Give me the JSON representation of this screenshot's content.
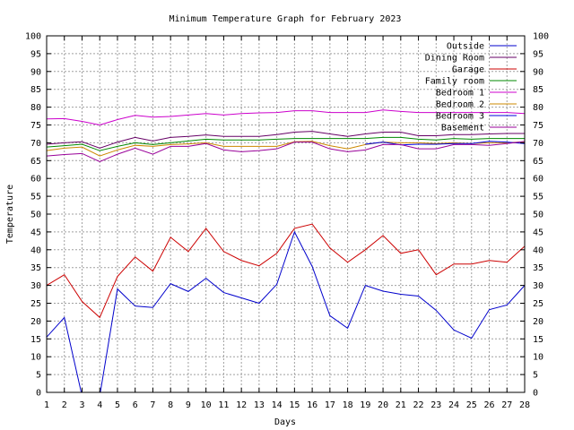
{
  "chart_data": {
    "type": "line",
    "title": "Minimum Temperature Graph for February 2023",
    "xlabel": "Days",
    "ylabel": "Temperature",
    "xlim": [
      1,
      28
    ],
    "ylim": [
      0,
      100
    ],
    "x_ticks": [
      1,
      2,
      3,
      4,
      5,
      6,
      7,
      8,
      9,
      10,
      11,
      12,
      13,
      14,
      15,
      16,
      17,
      18,
      19,
      20,
      21,
      22,
      23,
      24,
      25,
      26,
      27,
      28
    ],
    "y_ticks": [
      0,
      5,
      10,
      15,
      20,
      25,
      30,
      35,
      40,
      45,
      50,
      55,
      60,
      65,
      70,
      75,
      80,
      85,
      90,
      95,
      100
    ],
    "grid": true,
    "legend_position": "top-right",
    "x": [
      1,
      2,
      3,
      4,
      5,
      6,
      7,
      8,
      9,
      10,
      11,
      12,
      13,
      14,
      15,
      16,
      17,
      18,
      19,
      20,
      21,
      22,
      23,
      24,
      25,
      26,
      27,
      28
    ],
    "series": [
      {
        "name": "Outside",
        "color": "#0000cc",
        "values": [
          15.5,
          21,
          -1,
          -1,
          29,
          24.2,
          23.8,
          30.5,
          28.3,
          32,
          28,
          26.5,
          25,
          30.3,
          45,
          35.3,
          21.5,
          18,
          30,
          28.4,
          27.5,
          27,
          23,
          17.5,
          15.2,
          23.2,
          24.5,
          30
        ]
      },
      {
        "name": "Dining Room",
        "color": "#660066",
        "values": [
          69.6,
          70,
          70.3,
          68.5,
          70.2,
          71.5,
          70.5,
          71.5,
          71.8,
          72.2,
          71.8,
          71.8,
          71.8,
          72.3,
          73,
          73.2,
          72.5,
          71.8,
          72.5,
          73,
          73,
          72,
          72,
          72.3,
          72.3,
          72.5,
          72.6,
          72.6
        ]
      },
      {
        "name": "Garage",
        "color": "#cc0000",
        "values": [
          30,
          33,
          25.5,
          21,
          32.5,
          38,
          34,
          43.5,
          39.5,
          46,
          39.5,
          37,
          35.5,
          39,
          46,
          47.2,
          40.5,
          36.5,
          40,
          44,
          39,
          40,
          33,
          36,
          36,
          37,
          36.5,
          41
        ]
      },
      {
        "name": "Family room",
        "color": "#008800",
        "values": [
          68.8,
          69.2,
          69.6,
          67.8,
          69,
          70,
          69.5,
          70,
          70.5,
          71,
          70.8,
          70.8,
          70.8,
          71,
          71.2,
          71.2,
          71.2,
          71.2,
          71.2,
          71.5,
          71.5,
          71,
          70.8,
          71.2,
          71,
          71.2,
          71.2,
          71.2
        ]
      },
      {
        "name": "Bedroom 1",
        "color": "#cc00cc",
        "values": [
          76.7,
          76.8,
          76,
          75,
          76.5,
          77.7,
          77.2,
          77.4,
          77.8,
          78.2,
          77.8,
          78.2,
          78.4,
          78.5,
          79,
          79,
          78.5,
          78.5,
          78.5,
          79.2,
          78.8,
          78.5,
          78.5,
          78.5,
          78.5,
          78.5,
          78.5,
          78.2
        ]
      },
      {
        "name": "Bedroom 2",
        "color": "#cc8800",
        "values": [
          67.8,
          68.5,
          68.8,
          66.3,
          68,
          69.3,
          69,
          69.5,
          69.7,
          70,
          69,
          69,
          69,
          69,
          70.3,
          70.4,
          69.2,
          68.3,
          69.5,
          70.2,
          70,
          70,
          69.8,
          70,
          69.8,
          70,
          70,
          70.3
        ]
      },
      {
        "name": "Bedroom 3",
        "color": "#0000dd",
        "values": [
          null,
          null,
          null,
          null,
          null,
          null,
          null,
          null,
          null,
          null,
          null,
          null,
          null,
          null,
          null,
          null,
          null,
          null,
          69.6,
          70.2,
          69.4,
          69.6,
          69.6,
          69.8,
          69.8,
          70.4,
          70.2,
          69.8
        ]
      },
      {
        "name": "Basement",
        "color": "#990099",
        "values": [
          66.3,
          66.7,
          67,
          64.7,
          66.8,
          68.5,
          66.8,
          69,
          69,
          69.8,
          68,
          67.5,
          67.8,
          68.3,
          70.2,
          70.2,
          68.3,
          67.5,
          68,
          69.5,
          69.5,
          68.3,
          68.3,
          69.5,
          69.5,
          69.3,
          69.8,
          70.4
        ]
      }
    ]
  }
}
